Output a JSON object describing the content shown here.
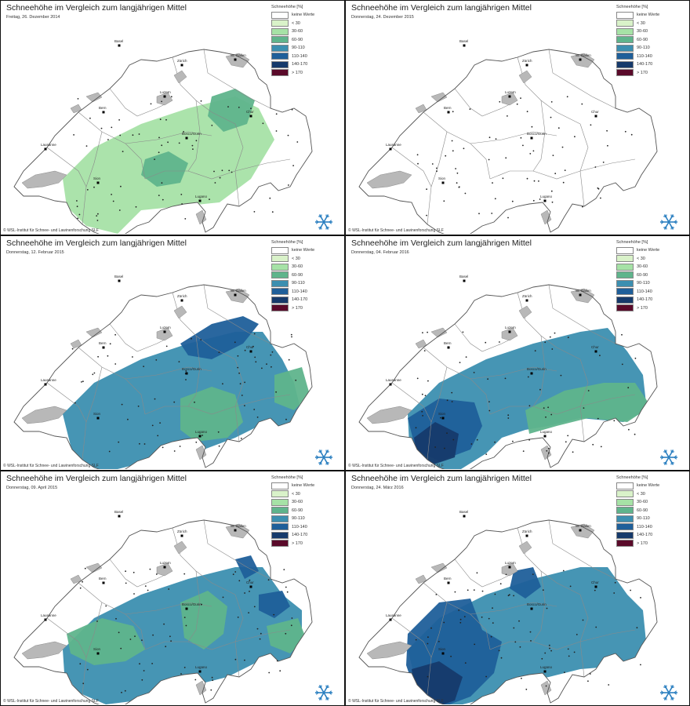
{
  "panels": [
    {
      "title": "Schneehöhe im Vergleich zum langjährigen Mittel",
      "date": "Freitag, 26. Dezember 2014",
      "copyright": "© WSL-Institut für Schnee- und Lawinenforschung SLF",
      "zones": [
        {
          "cls": 2,
          "pts": [
            [
              80,
              200
            ],
            [
              120,
              160
            ],
            [
              180,
              130
            ],
            [
              240,
              110
            ],
            [
              300,
              95
            ],
            [
              330,
              110
            ],
            [
              350,
              150
            ],
            [
              320,
              200
            ],
            [
              280,
              230
            ],
            [
              230,
              235
            ],
            [
              180,
              240
            ],
            [
              150,
              270
            ],
            [
              110,
              260
            ],
            [
              85,
              235
            ]
          ]
        },
        {
          "cls": 3,
          "pts": [
            [
              270,
              95
            ],
            [
              300,
              85
            ],
            [
              325,
              100
            ],
            [
              315,
              130
            ],
            [
              285,
              140
            ],
            [
              265,
              120
            ]
          ]
        },
        {
          "cls": 3,
          "pts": [
            [
              185,
              175
            ],
            [
              215,
              165
            ],
            [
              240,
              180
            ],
            [
              230,
              205
            ],
            [
              200,
              210
            ],
            [
              180,
              195
            ]
          ]
        }
      ]
    },
    {
      "title": "Schneehöhe im Vergleich zum langjährigen Mittel",
      "date": "Donnerstag, 24. Dezember 2015",
      "copyright": "© WSL-Institut für Schnee- und Lawinenforschung SLF",
      "zones": []
    },
    {
      "title": "Schneehöhe im Vergleich zum langjährigen Mittel",
      "date": "Donnerstag, 12. Februar 2015",
      "copyright": "© WSL-Institut für Schnee- und Lawinenforschung SLF",
      "zones": [
        {
          "cls": 4,
          "pts": [
            [
              80,
              200
            ],
            [
              120,
              160
            ],
            [
              180,
              130
            ],
            [
              240,
              110
            ],
            [
              300,
              95
            ],
            [
              335,
              95
            ],
            [
              360,
              130
            ],
            [
              375,
              160
            ],
            [
              385,
              200
            ],
            [
              365,
              220
            ],
            [
              340,
              210
            ],
            [
              300,
              230
            ],
            [
              260,
              245
            ],
            [
              230,
              240
            ],
            [
              200,
              250
            ],
            [
              170,
              265
            ],
            [
              130,
              275
            ],
            [
              95,
              260
            ]
          ]
        },
        {
          "cls": 5,
          "pts": [
            [
              230,
              110
            ],
            [
              270,
              85
            ],
            [
              310,
              75
            ],
            [
              330,
              85
            ],
            [
              310,
              110
            ],
            [
              270,
              130
            ],
            [
              240,
              125
            ]
          ]
        },
        {
          "cls": 3,
          "pts": [
            [
              230,
              180
            ],
            [
              270,
              165
            ],
            [
              300,
              175
            ],
            [
              310,
              210
            ],
            [
              290,
              230
            ],
            [
              250,
              235
            ],
            [
              230,
              220
            ]
          ]
        },
        {
          "cls": 3,
          "pts": [
            [
              350,
              150
            ],
            [
              385,
              140
            ],
            [
              395,
              175
            ],
            [
              375,
              195
            ],
            [
              350,
              185
            ]
          ]
        }
      ]
    },
    {
      "title": "Schneehöhe im Vergleich zum langjährigen Mittel",
      "date": "Donnerstag, 04. Februar 2016",
      "copyright": "© WSL-Institut für Schnee- und Lawinenforschung SLF",
      "zones": [
        {
          "cls": 4,
          "pts": [
            [
              80,
              200
            ],
            [
              120,
              160
            ],
            [
              180,
              130
            ],
            [
              240,
              110
            ],
            [
              300,
              95
            ],
            [
              335,
              90
            ],
            [
              360,
              120
            ],
            [
              380,
              150
            ],
            [
              385,
              195
            ],
            [
              355,
              210
            ],
            [
              300,
              205
            ],
            [
              260,
              215
            ],
            [
              230,
              220
            ],
            [
              200,
              230
            ],
            [
              180,
              250
            ],
            [
              140,
              275
            ],
            [
              100,
              265
            ],
            [
              82,
              240
            ]
          ]
        },
        {
          "cls": 3,
          "pts": [
            [
              230,
              195
            ],
            [
              280,
              170
            ],
            [
              330,
              160
            ],
            [
              370,
              160
            ],
            [
              390,
              190
            ],
            [
              360,
              210
            ],
            [
              310,
              205
            ],
            [
              270,
              215
            ],
            [
              235,
              225
            ]
          ]
        },
        {
          "cls": 5,
          "pts": [
            [
              80,
              205
            ],
            [
              120,
              180
            ],
            [
              165,
              185
            ],
            [
              175,
              215
            ],
            [
              160,
              245
            ],
            [
              120,
              260
            ],
            [
              90,
              245
            ]
          ]
        },
        {
          "cls": 6,
          "pts": [
            [
              88,
              230
            ],
            [
              115,
              210
            ],
            [
              145,
              225
            ],
            [
              140,
              255
            ],
            [
              110,
              265
            ],
            [
              92,
              252
            ]
          ]
        }
      ]
    },
    {
      "title": "Schneehöhe im Vergleich zum langjährigen Mittel",
      "date": "Donnerstag, 09. April 2015",
      "copyright": "© WSL-Institut für Schnee- und Lawinenforschung SLF",
      "zones": [
        {
          "cls": 4,
          "pts": [
            [
              80,
              200
            ],
            [
              120,
              160
            ],
            [
              180,
              130
            ],
            [
              240,
              110
            ],
            [
              300,
              95
            ],
            [
              335,
              95
            ],
            [
              360,
              130
            ],
            [
              385,
              150
            ],
            [
              385,
              200
            ],
            [
              365,
              220
            ],
            [
              330,
              215
            ],
            [
              290,
              235
            ],
            [
              250,
              245
            ],
            [
              210,
              250
            ],
            [
              175,
              265
            ],
            [
              135,
              270
            ],
            [
              100,
              255
            ],
            [
              82,
              230
            ]
          ]
        },
        {
          "cls": 3,
          "pts": [
            [
              85,
              180
            ],
            [
              130,
              160
            ],
            [
              170,
              170
            ],
            [
              185,
              200
            ],
            [
              160,
              215
            ],
            [
              120,
              220
            ],
            [
              90,
              205
            ]
          ]
        },
        {
          "cls": 3,
          "pts": [
            [
              230,
              140
            ],
            [
              265,
              125
            ],
            [
              290,
              145
            ],
            [
              285,
              180
            ],
            [
              260,
              200
            ],
            [
              235,
              185
            ]
          ]
        },
        {
          "cls": 3,
          "pts": [
            [
              340,
              170
            ],
            [
              380,
              160
            ],
            [
              390,
              185
            ],
            [
              370,
              205
            ],
            [
              345,
              195
            ]
          ]
        },
        {
          "cls": 5,
          "pts": [
            [
              330,
              130
            ],
            [
              360,
              125
            ],
            [
              370,
              145
            ],
            [
              350,
              160
            ],
            [
              330,
              150
            ]
          ]
        },
        {
          "cls": 5,
          "pts": [
            [
              300,
              85
            ],
            [
              320,
              80
            ],
            [
              330,
              100
            ],
            [
              312,
              110
            ]
          ]
        }
      ]
    },
    {
      "title": "Schneehöhe im Vergleich zum langjährigen Mittel",
      "date": "Donnerstag, 24. März 2016",
      "copyright": "© WSL-Institut für Schnee- und Lawinenforschung SLF",
      "zones": [
        {
          "cls": 4,
          "pts": [
            [
              80,
              200
            ],
            [
              120,
              160
            ],
            [
              180,
              130
            ],
            [
              240,
              110
            ],
            [
              300,
              95
            ],
            [
              335,
              95
            ],
            [
              360,
              130
            ],
            [
              380,
              150
            ],
            [
              385,
              200
            ],
            [
              360,
              220
            ],
            [
              300,
              225
            ],
            [
              260,
              235
            ],
            [
              210,
              245
            ],
            [
              170,
              265
            ],
            [
              130,
              275
            ],
            [
              95,
              260
            ]
          ]
        },
        {
          "cls": 5,
          "pts": [
            [
              80,
              180
            ],
            [
              120,
              140
            ],
            [
              160,
              135
            ],
            [
              175,
              175
            ],
            [
              200,
              190
            ],
            [
              190,
              230
            ],
            [
              160,
              260
            ],
            [
              120,
              275
            ],
            [
              90,
              255
            ],
            [
              78,
              220
            ]
          ]
        },
        {
          "cls": 6,
          "pts": [
            [
              85,
              225
            ],
            [
              120,
              215
            ],
            [
              150,
              235
            ],
            [
              140,
              265
            ],
            [
              110,
              275
            ],
            [
              90,
              258
            ]
          ]
        },
        {
          "cls": 5,
          "pts": [
            [
              215,
              100
            ],
            [
              240,
              95
            ],
            [
              250,
              120
            ],
            [
              230,
              135
            ],
            [
              210,
              122
            ]
          ]
        }
      ]
    }
  ],
  "legend": {
    "title": "Schneehöhe [%]",
    "items": [
      {
        "label": "keine Werte",
        "color": "#ffffff"
      },
      {
        "label": "< 30",
        "color": "#d9f2c9"
      },
      {
        "label": "30-60",
        "color": "#a6e2a6"
      },
      {
        "label": "60-90",
        "color": "#5fb48c"
      },
      {
        "label": "90-110",
        "color": "#3c8fb0"
      },
      {
        "label": "110-140",
        "color": "#1f5f9a"
      },
      {
        "label": "140-170",
        "color": "#163a6b"
      },
      {
        "label": "> 170",
        "color": "#5a0a2a"
      }
    ]
  },
  "cities": [
    {
      "name": "Zürich",
      "x": 232,
      "y": 55
    },
    {
      "name": "St. Gallen",
      "x": 300,
      "y": 48
    },
    {
      "name": "Basel",
      "x": 152,
      "y": 30
    },
    {
      "name": "Bern",
      "x": 132,
      "y": 115
    },
    {
      "name": "Luzern",
      "x": 210,
      "y": 95
    },
    {
      "name": "Chur",
      "x": 320,
      "y": 120
    },
    {
      "name": "Lausanne",
      "x": 58,
      "y": 162
    },
    {
      "name": "Sion",
      "x": 125,
      "y": 205
    },
    {
      "name": "Bosco/Gurin",
      "x": 238,
      "y": 148
    },
    {
      "name": "Lugano",
      "x": 255,
      "y": 228
    }
  ]
}
